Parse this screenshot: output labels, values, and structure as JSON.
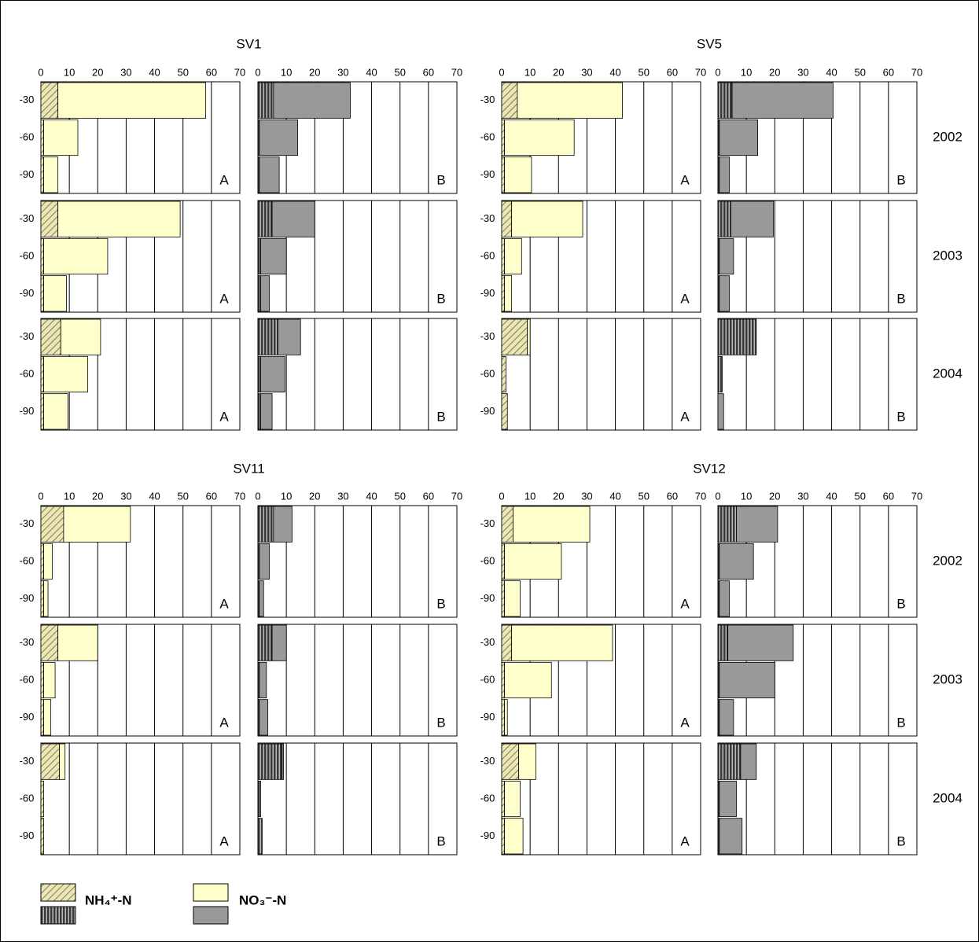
{
  "chart_data": {
    "type": "bar",
    "orientation": "horizontal",
    "stacked": true,
    "categories": [
      "-30",
      "-60",
      "-90"
    ],
    "xlim": [
      0,
      70
    ],
    "xticks": [
      0,
      10,
      20,
      30,
      40,
      50,
      60,
      70
    ],
    "grid": true,
    "legend": [
      {
        "name": "NH₄⁺-N",
        "colors": [
          "#ece7b0",
          "#3a3a3a"
        ]
      },
      {
        "name": "NO₃⁻-N",
        "colors": [
          "#ffffcc",
          "#999999"
        ]
      }
    ],
    "groups": [
      {
        "years": [
          "2002",
          "2003",
          "2004"
        ],
        "sites": [
          {
            "title": "SV1",
            "rows": [
              [
                {
                  "label": "A",
                  "series": [
                    [
                      6,
                      1,
                      1
                    ],
                    [
                      52,
                      12,
                      5
                    ]
                  ]
                },
                {
                  "label": "B",
                  "series": [
                    [
                      5.5,
                      0.5,
                      0.5
                    ],
                    [
                      27,
                      13.5,
                      7
                    ]
                  ]
                }
              ],
              [
                {
                  "label": "A",
                  "series": [
                    [
                      6,
                      1,
                      1
                    ],
                    [
                      43,
                      22.5,
                      8
                    ]
                  ]
                },
                {
                  "label": "B",
                  "series": [
                    [
                      5,
                      1,
                      1
                    ],
                    [
                      15,
                      9,
                      3
                    ]
                  ]
                }
              ],
              [
                {
                  "label": "A",
                  "series": [
                    [
                      7,
                      1,
                      1
                    ],
                    [
                      14,
                      15.5,
                      8.5
                    ]
                  ]
                },
                {
                  "label": "B",
                  "series": [
                    [
                      7,
                      1,
                      1
                    ],
                    [
                      8,
                      8.5,
                      4
                    ]
                  ]
                }
              ]
            ]
          },
          {
            "title": "SV5",
            "rows": [
              [
                {
                  "label": "A",
                  "series": [
                    [
                      5.5,
                      1,
                      1
                    ],
                    [
                      37,
                      24.5,
                      9.5
                    ]
                  ]
                },
                {
                  "label": "B",
                  "series": [
                    [
                      5,
                      0.5,
                      0.5
                    ],
                    [
                      35.5,
                      13.5,
                      3.5
                    ]
                  ]
                }
              ],
              [
                {
                  "label": "A",
                  "series": [
                    [
                      3.5,
                      1,
                      1
                    ],
                    [
                      25,
                      6,
                      2.5
                    ]
                  ]
                },
                {
                  "label": "B",
                  "series": [
                    [
                      4.5,
                      0.5,
                      0.5
                    ],
                    [
                      15,
                      5,
                      3.5
                    ]
                  ]
                }
              ],
              [
                {
                  "label": "A",
                  "series": [
                    [
                      9,
                      1.5,
                      2
                    ],
                    [
                      1,
                      0,
                      0
                    ]
                  ]
                },
                {
                  "label": "B",
                  "series": [
                    [
                      13.5,
                      1.5,
                      0
                    ],
                    [
                      0,
                      0,
                      2
                    ]
                  ]
                }
              ]
            ]
          }
        ]
      },
      {
        "years": [
          "2002",
          "2003",
          "2004"
        ],
        "sites": [
          {
            "title": "SV11",
            "rows": [
              [
                {
                  "label": "A",
                  "series": [
                    [
                      8,
                      1,
                      1
                    ],
                    [
                      23.5,
                      3,
                      1.5
                    ]
                  ]
                },
                {
                  "label": "B",
                  "series": [
                    [
                      5.5,
                      0.5,
                      0.5
                    ],
                    [
                      6.5,
                      3.5,
                      1.5
                    ]
                  ]
                }
              ],
              [
                {
                  "label": "A",
                  "series": [
                    [
                      6,
                      1,
                      1
                    ],
                    [
                      14,
                      4,
                      2.5
                    ]
                  ]
                },
                {
                  "label": "B",
                  "series": [
                    [
                      5,
                      0.5,
                      0.5
                    ],
                    [
                      5,
                      2.5,
                      3
                    ]
                  ]
                }
              ],
              [
                {
                  "label": "A",
                  "series": [
                    [
                      6.5,
                      1,
                      1
                    ],
                    [
                      2,
                      0,
                      0
                    ]
                  ]
                },
                {
                  "label": "B",
                  "series": [
                    [
                      8.5,
                      1,
                      1.5
                    ],
                    [
                      0.5,
                      0,
                      0
                    ]
                  ]
                }
              ]
            ]
          },
          {
            "title": "SV12",
            "rows": [
              [
                {
                  "label": "A",
                  "series": [
                    [
                      4,
                      1,
                      1
                    ],
                    [
                      27,
                      20,
                      5.5
                    ]
                  ]
                },
                {
                  "label": "B",
                  "series": [
                    [
                      6.5,
                      0.5,
                      0.5
                    ],
                    [
                      14.5,
                      12,
                      3.5
                    ]
                  ]
                }
              ],
              [
                {
                  "label": "A",
                  "series": [
                    [
                      3.5,
                      1,
                      1
                    ],
                    [
                      35.5,
                      16.5,
                      1
                    ]
                  ]
                },
                {
                  "label": "B",
                  "series": [
                    [
                      3.5,
                      0.5,
                      0.5
                    ],
                    [
                      23,
                      19.5,
                      5
                    ]
                  ]
                }
              ],
              [
                {
                  "label": "A",
                  "series": [
                    [
                      6,
                      1,
                      1
                    ],
                    [
                      6,
                      5.5,
                      6.5
                    ]
                  ]
                },
                {
                  "label": "B",
                  "series": [
                    [
                      8,
                      0.5,
                      0.5
                    ],
                    [
                      5.5,
                      6,
                      8
                    ]
                  ]
                }
              ]
            ]
          }
        ]
      }
    ]
  }
}
